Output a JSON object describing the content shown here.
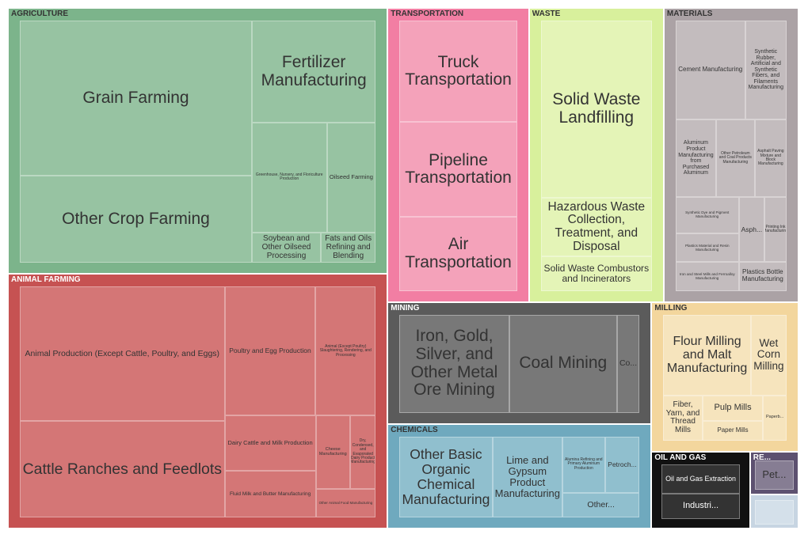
{
  "chart_data": {
    "type": "treemap",
    "groups": [
      {
        "name": "AGRICULTURE",
        "color": "#7cb48b",
        "leaf_color": "#97c3a2",
        "children": [
          {
            "label": "Grain Farming",
            "value": 67
          },
          {
            "label": "Other Crop Farming",
            "value": 37.6
          },
          {
            "label": "Fertilizer Manufacturing",
            "value": 23.5
          },
          {
            "label": "Greenhouse, Nursery, and Floriculture Production",
            "value": 15.3
          },
          {
            "label": "Oilseed Farming",
            "value": 10
          },
          {
            "label": "Soybean and Other Oilseed Processing",
            "value": 3.9
          },
          {
            "label": "Fats and Oils Refining and Blending",
            "value": 3.1
          }
        ]
      },
      {
        "name": "ANIMAL FARMING",
        "color": "#c65252",
        "leaf_color": "#d47676",
        "children": [
          {
            "label": "Animal Production (Except Cattle, Poultry, and Eggs)",
            "value": 51.4
          },
          {
            "label": "Cattle Ranches and Feedlots",
            "value": 36.9
          },
          {
            "label": "Poultry and Egg Production",
            "value": 21.9
          },
          {
            "label": "Animal (Except Poultry) Slaughtering, Rendering, and Processing",
            "value": 14.5
          },
          {
            "label": "Dairy Cattle and Milk Production",
            "value": 9.4
          },
          {
            "label": "Fluid Milk and Butter Manufacturing",
            "value": 7.9
          },
          {
            "label": "Cheese Manufacturing",
            "value": 4.7
          },
          {
            "label": "Dry, Condensed, and Evaporated Dairy Product Manufacturing",
            "value": 3.5
          },
          {
            "label": "Other Animal Food Manufacturing",
            "value": 3.2
          }
        ]
      },
      {
        "name": "TRANSPORTATION",
        "color": "#f27ea3",
        "leaf_color": "#f4a2ba",
        "children": [
          {
            "label": "Truck Transportation",
            "value": 24.8
          },
          {
            "label": "Pipeline Transportation",
            "value": 23.2
          },
          {
            "label": "Air Transportation",
            "value": 18
          }
        ]
      },
      {
        "name": "MATERIALS",
        "color": "#aba2a5",
        "leaf_color": "#c3bcbe",
        "children": [
          {
            "label": "Cement Manufacturing",
            "value": 14.4
          },
          {
            "label": "Synthetic Rubber, Artificial and Synthetic Fibers, and Filaments Manufacturing",
            "value": 8.6
          },
          {
            "label": "Aluminum Product Manufacturing from Purchased Aluminum",
            "value": 6.6
          },
          {
            "label": "Other Petroleum and Coal Products Manufacturing",
            "value": 6.3
          },
          {
            "label": "Asphalt Paving Mixture and Block Manufacturing",
            "value": 5.2
          },
          {
            "label": "Synthetic Dye and Pigment Manufacturing",
            "value": 4.8
          },
          {
            "label": "Plastics Material and Resin Manufacturing",
            "value": 3.8
          },
          {
            "label": "Iron and Steel Mills and Ferroalloy Manufacturing",
            "value": 3.8
          },
          {
            "label": "Asph...",
            "value": 3.5
          },
          {
            "label": "Printing Ink Manufacturing",
            "value": 3
          },
          {
            "label": "Plastics Bottle Manufacturing",
            "value": 2.9
          }
        ]
      },
      {
        "name": "WASTE",
        "color": "#d8f09c",
        "leaf_color": "#e4f4b7",
        "children": [
          {
            "label": "Solid Waste Landfilling",
            "value": 41.3
          },
          {
            "label": "Hazardous Waste Collection, Treatment, and Disposal",
            "value": 13.6
          },
          {
            "label": "Solid Waste Combustors and Incinerators",
            "value": 8
          }
        ]
      },
      {
        "name": "MINING",
        "color": "#5b5b5b",
        "leaf_color": "#787878",
        "children": [
          {
            "label": "Iron, Gold, Silver, and Other Metal Ore Mining",
            "value": 23.3
          },
          {
            "label": "Coal Mining",
            "value": 22.9
          },
          {
            "label": "Co...",
            "value": 4.8
          }
        ]
      },
      {
        "name": "CHEMICALS",
        "color": "#6fa9be",
        "leaf_color": "#90bfce",
        "children": [
          {
            "label": "Other Basic Organic Chemical Manufacturing",
            "value": 17
          },
          {
            "label": "Lime and Gypsum Product Manufacturing",
            "value": 12.8
          },
          {
            "label": "Alumina Refining and Primary Aluminum Production",
            "value": 5.4
          },
          {
            "label": "Petroch...",
            "value": 4.4
          },
          {
            "label": "Other...",
            "value": 4.3
          }
        ]
      },
      {
        "name": "MILLING",
        "color": "#f3d69d",
        "leaf_color": "#f6e4bd",
        "children": [
          {
            "label": "Flour Milling and Malt Manufacturing",
            "value": 15.9
          },
          {
            "label": "Wet Corn Milling",
            "value": 6.5
          },
          {
            "label": "Fiber, Yarn, and Thread Mills",
            "value": 4
          },
          {
            "label": "Pulp Mills",
            "value": 3.5
          },
          {
            "label": "Paper Mills",
            "value": 2.7
          },
          {
            "label": "Paperb...",
            "value": 2.4
          }
        ]
      },
      {
        "name": "OIL AND GAS",
        "color": "#111111",
        "leaf_color": "#333333",
        "children": [
          {
            "label": "Oil and Gas Extraction",
            "value": 6.4
          },
          {
            "label": "Industri...",
            "value": 5.6
          }
        ]
      },
      {
        "name": "RE...",
        "color": "#5d5170",
        "leaf_color": "#867d93",
        "children": [
          {
            "label": "Pet...",
            "value": 3.3
          }
        ]
      },
      {
        "name": null,
        "color": "#c7d5e2",
        "leaf_color": "#d4e0ea",
        "children": [
          {
            "label": null,
            "value": 2.6
          }
        ]
      }
    ]
  }
}
